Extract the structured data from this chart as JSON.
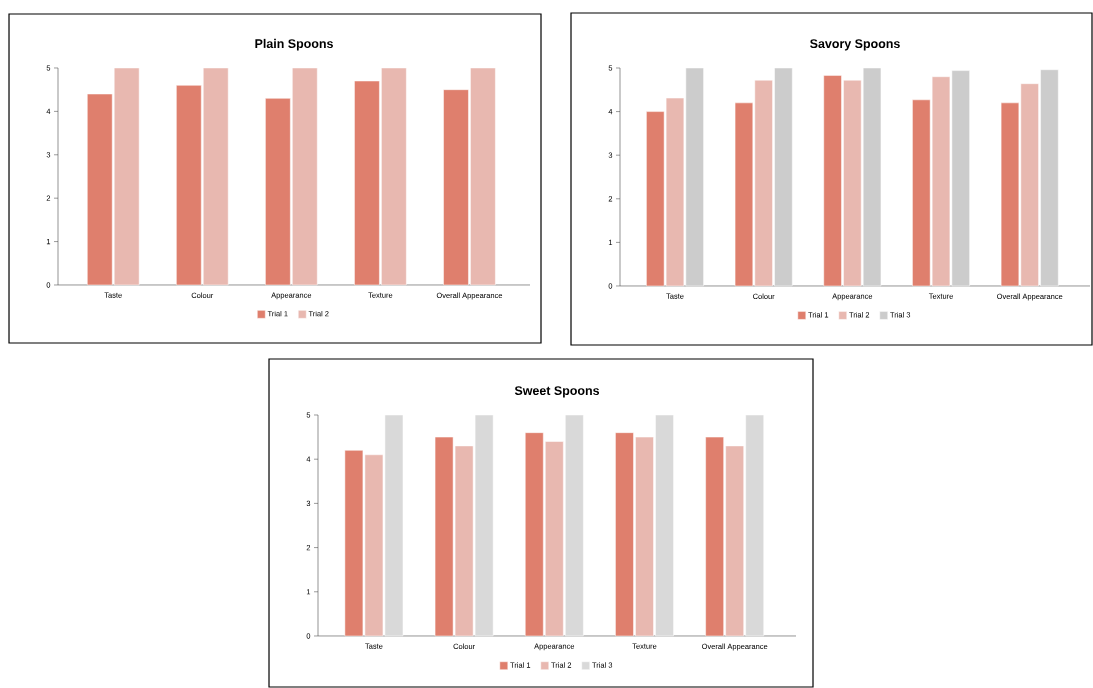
{
  "chart_data": [
    {
      "type": "bar",
      "title": "Plain Spoons",
      "categories": [
        "Taste",
        "Colour",
        "Appearance",
        "Texture",
        "Overall Appearance"
      ],
      "series": [
        {
          "name": "Trial 1",
          "color": "#df7f6d",
          "values": [
            4.4,
            4.6,
            4.3,
            4.7,
            4.5
          ]
        },
        {
          "name": "Trial 2",
          "color": "#e8b8b0",
          "values": [
            5,
            5,
            5,
            5,
            5
          ]
        }
      ],
      "ylim": [
        0,
        5
      ],
      "yticks": [
        0,
        1,
        2,
        3,
        4,
        5
      ],
      "legend": "bottom"
    },
    {
      "type": "bar",
      "title": "Savory Spoons",
      "categories": [
        "Taste",
        "Colour",
        "Appearance",
        "Texture",
        "Overall Appearance"
      ],
      "series": [
        {
          "name": "Trial 1",
          "color": "#df7f6d",
          "values": [
            4.0,
            4.2,
            4.83,
            4.27,
            4.2
          ]
        },
        {
          "name": "Trial 2",
          "color": "#e8b8b0",
          "values": [
            4.31,
            4.72,
            4.72,
            4.8,
            4.64
          ]
        },
        {
          "name": "Trial 3",
          "color": "#cccccc",
          "values": [
            5,
            5,
            5,
            4.94,
            4.96
          ]
        }
      ],
      "ylim": [
        0,
        5
      ],
      "yticks": [
        0,
        1,
        2,
        3,
        4,
        5
      ],
      "legend": "bottom"
    },
    {
      "type": "bar",
      "title": "Sweet Spoons",
      "categories": [
        "Taste",
        "Colour",
        "Appearance",
        "Texture",
        "Overall Appearance"
      ],
      "series": [
        {
          "name": "Trial 1",
          "color": "#df7f6d",
          "values": [
            4.2,
            4.5,
            4.6,
            4.6,
            4.5
          ]
        },
        {
          "name": "Trial 2",
          "color": "#e8b8b0",
          "values": [
            4.1,
            4.3,
            4.4,
            4.5,
            4.3
          ]
        },
        {
          "name": "Trial 3",
          "color": "#d9d9d9",
          "values": [
            5,
            5,
            5,
            5,
            5
          ]
        }
      ],
      "ylim": [
        0,
        5
      ],
      "yticks": [
        0,
        1,
        2,
        3,
        4,
        5
      ],
      "legend": "bottom"
    }
  ]
}
